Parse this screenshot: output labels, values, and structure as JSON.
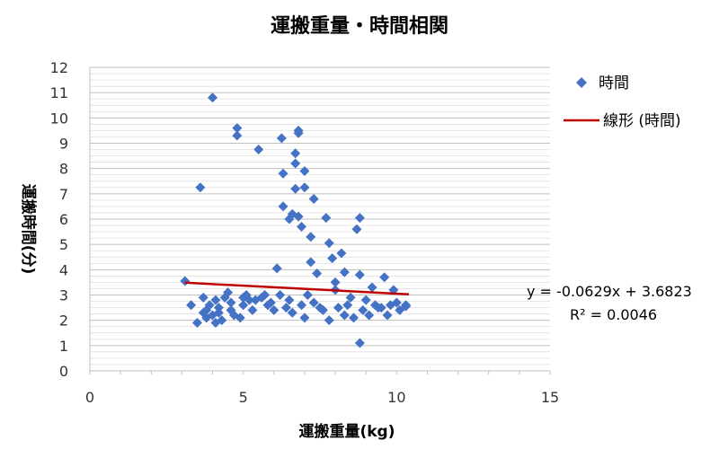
{
  "chart_data": {
    "type": "scatter",
    "title": "運搬重量・時間相関",
    "xlabel": "運搬重量(kg)",
    "ylabel": "運搬時間(分)",
    "xlim": [
      0,
      15
    ],
    "ylim": [
      0,
      12
    ],
    "x_ticks": [
      "0",
      "5",
      "10",
      "15"
    ],
    "y_ticks": [
      "0",
      "1",
      "2",
      "3",
      "4",
      "5",
      "6",
      "7",
      "8",
      "9",
      "10",
      "11",
      "12"
    ],
    "grid": "horizontal",
    "legend_position": "right",
    "series": [
      {
        "name": "時間",
        "color": "#4472C4",
        "marker": "diamond",
        "points": [
          [
            3.1,
            3.55
          ],
          [
            3.3,
            2.6
          ],
          [
            3.5,
            1.9
          ],
          [
            3.6,
            7.25
          ],
          [
            3.7,
            2.9
          ],
          [
            3.7,
            2.3
          ],
          [
            3.8,
            2.1
          ],
          [
            3.9,
            2.6
          ],
          [
            4.0,
            10.8
          ],
          [
            4.0,
            2.2
          ],
          [
            4.1,
            1.9
          ],
          [
            4.1,
            2.8
          ],
          [
            4.2,
            2.5
          ],
          [
            4.3,
            2.0
          ],
          [
            4.4,
            2.9
          ],
          [
            4.5,
            3.1
          ],
          [
            4.6,
            2.4
          ],
          [
            4.7,
            2.2
          ],
          [
            4.8,
            9.6
          ],
          [
            4.8,
            9.3
          ],
          [
            4.9,
            2.1
          ],
          [
            5.0,
            2.6
          ],
          [
            5.1,
            3.0
          ],
          [
            5.2,
            2.8
          ],
          [
            5.3,
            2.4
          ],
          [
            5.5,
            8.75
          ],
          [
            5.6,
            2.9
          ],
          [
            5.8,
            2.6
          ],
          [
            6.0,
            2.4
          ],
          [
            6.1,
            4.05
          ],
          [
            6.2,
            3.0
          ],
          [
            6.25,
            9.2
          ],
          [
            6.3,
            7.8
          ],
          [
            6.3,
            6.5
          ],
          [
            6.4,
            2.5
          ],
          [
            6.5,
            6.0
          ],
          [
            6.6,
            6.2
          ],
          [
            6.7,
            8.6
          ],
          [
            6.7,
            8.2
          ],
          [
            6.7,
            7.2
          ],
          [
            6.8,
            9.5
          ],
          [
            6.8,
            9.4
          ],
          [
            6.8,
            6.1
          ],
          [
            6.9,
            5.7
          ],
          [
            7.0,
            7.9
          ],
          [
            7.0,
            7.25
          ],
          [
            7.1,
            3.0
          ],
          [
            7.2,
            5.3
          ],
          [
            7.2,
            4.3
          ],
          [
            7.3,
            6.8
          ],
          [
            7.4,
            3.85
          ],
          [
            7.5,
            2.5
          ],
          [
            7.7,
            6.05
          ],
          [
            7.8,
            5.05
          ],
          [
            7.9,
            4.45
          ],
          [
            8.0,
            3.5
          ],
          [
            8.2,
            4.65
          ],
          [
            8.3,
            3.9
          ],
          [
            8.4,
            2.6
          ],
          [
            8.7,
            5.6
          ],
          [
            8.8,
            6.05
          ],
          [
            8.8,
            3.8
          ],
          [
            8.8,
            1.1
          ],
          [
            9.0,
            2.8
          ],
          [
            9.2,
            3.3
          ],
          [
            9.4,
            2.5
          ],
          [
            9.6,
            3.7
          ],
          [
            9.7,
            2.2
          ],
          [
            9.9,
            3.2
          ],
          [
            10.0,
            2.7
          ],
          [
            10.3,
            2.55
          ],
          [
            10.3,
            2.6
          ],
          [
            3.8,
            2.4
          ],
          [
            4.2,
            2.3
          ],
          [
            4.6,
            2.7
          ],
          [
            5.0,
            2.9
          ],
          [
            5.4,
            2.8
          ],
          [
            5.7,
            3.0
          ],
          [
            5.9,
            2.7
          ],
          [
            6.5,
            2.8
          ],
          [
            6.6,
            2.3
          ],
          [
            6.9,
            2.6
          ],
          [
            7.0,
            2.1
          ],
          [
            7.3,
            2.7
          ],
          [
            7.6,
            2.4
          ],
          [
            7.8,
            2.0
          ],
          [
            8.0,
            3.2
          ],
          [
            8.1,
            2.5
          ],
          [
            8.3,
            2.2
          ],
          [
            8.5,
            2.9
          ],
          [
            8.6,
            2.1
          ],
          [
            8.9,
            2.4
          ],
          [
            9.1,
            2.2
          ],
          [
            9.3,
            2.6
          ],
          [
            9.5,
            2.5
          ],
          [
            9.8,
            2.6
          ],
          [
            10.1,
            2.4
          ]
        ]
      },
      {
        "name": "線形 (時間)",
        "color": "#C00000",
        "type": "trendline",
        "x": [
          3.1,
          10.4
        ],
        "slope": -0.0629,
        "intercept": 3.6823
      }
    ],
    "annotations": {
      "equation": "y = -0.0629x + 3.6823",
      "r2": "R² = 0.0046"
    }
  }
}
